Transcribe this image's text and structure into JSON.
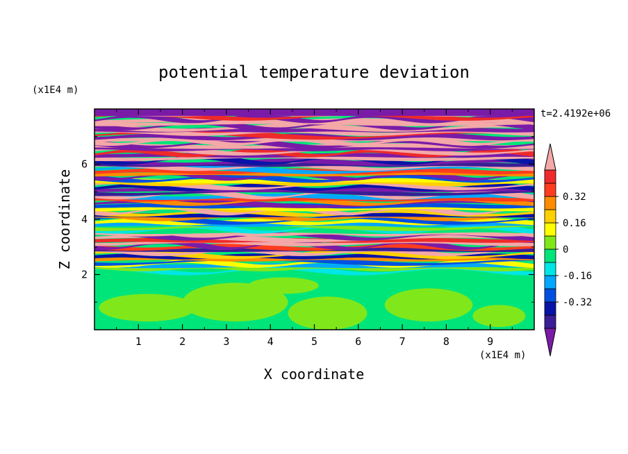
{
  "chart_data": {
    "type": "heatmap",
    "title": "potential temperature deviation",
    "xlabel": "X coordinate",
    "ylabel": "Z coordinate",
    "x_unit": "(x1E4 m)",
    "y_unit": "(x1E4 m)",
    "time_label": "t=2.4192e+06",
    "xlim": [
      0,
      10
    ],
    "ylim": [
      0,
      8
    ],
    "x_ticks": [
      "1",
      "2",
      "3",
      "4",
      "5",
      "6",
      "7",
      "8",
      "9"
    ],
    "y_ticks": [
      "2",
      "4",
      "6"
    ],
    "colorbar": {
      "levels": [
        -0.48,
        -0.4,
        -0.32,
        -0.24,
        -0.16,
        -0.08,
        0,
        0.08,
        0.16,
        0.24,
        0.32,
        0.4,
        0.48
      ],
      "colors": [
        "#7a1ba8",
        "#3a1e96",
        "#0a13a8",
        "#0050e0",
        "#00a8ff",
        "#00e6e6",
        "#00e57a",
        "#80e81a",
        "#ffff00",
        "#ffd000",
        "#ff8c00",
        "#ff3c1e",
        "#ee2a2a",
        "#f4a8a8"
      ],
      "tick_labels": [
        "0.32",
        "0.16",
        "0",
        "-0.16",
        "-0.32"
      ],
      "extend": "both"
    }
  }
}
